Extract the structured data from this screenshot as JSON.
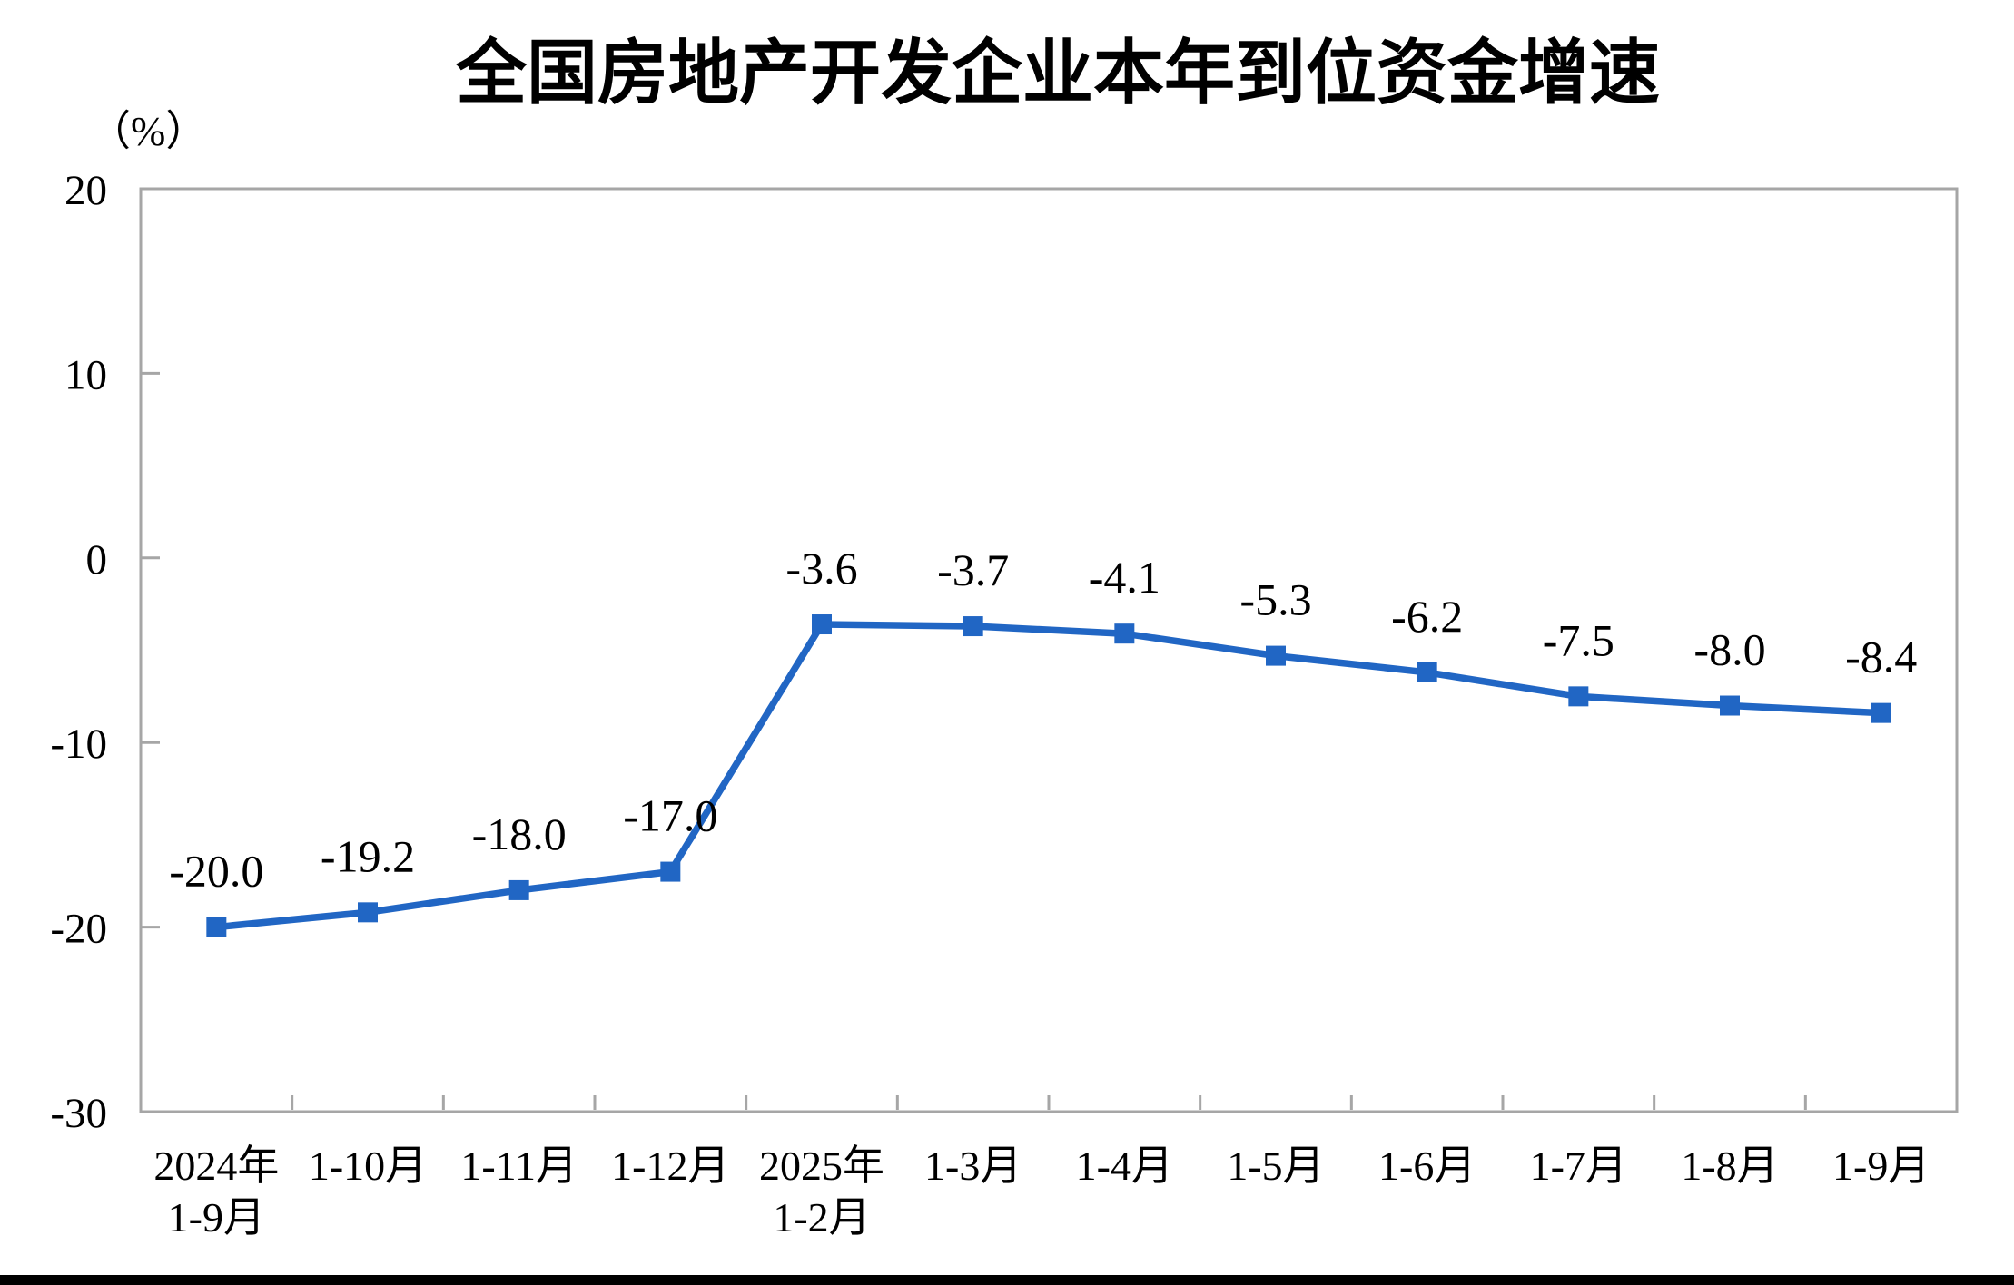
{
  "page": {
    "background_color": "#ffffff",
    "bottom_bar_color": "#000000"
  },
  "chart_data": {
    "type": "line",
    "title": "全国房地产开发企业本年到位资金增速",
    "unit_label": "（%）",
    "categories": [
      [
        "2024年",
        "1-9月"
      ],
      [
        "1-10月"
      ],
      [
        "1-11月"
      ],
      [
        "1-12月"
      ],
      [
        "2025年",
        "1-2月"
      ],
      [
        "1-3月"
      ],
      [
        "1-4月"
      ],
      [
        "1-5月"
      ],
      [
        "1-6月"
      ],
      [
        "1-7月"
      ],
      [
        "1-8月"
      ],
      [
        "1-9月"
      ]
    ],
    "values": [
      -20.0,
      -19.2,
      -18.0,
      -17.0,
      -3.6,
      -3.7,
      -4.1,
      -5.3,
      -6.2,
      -7.5,
      -8.0,
      -8.4
    ],
    "data_labels": [
      "-20.0",
      "-19.2",
      "-18.0",
      "-17.0",
      "-3.6",
      "-3.7",
      "-4.1",
      "-5.3",
      "-6.2",
      "-7.5",
      "-8.0",
      "-8.4"
    ],
    "y_ticks": [
      20,
      10,
      0,
      -10,
      -20,
      -30
    ],
    "ylim": [
      -30,
      20
    ],
    "xlabel": "",
    "ylabel": "（%）",
    "grid": false,
    "legend_position": "none",
    "marker_shape": "square",
    "line_color": "#2166C4",
    "marker_color": "#2166C4",
    "axis_color": "#A6A6A6",
    "text_color": "#000000"
  }
}
